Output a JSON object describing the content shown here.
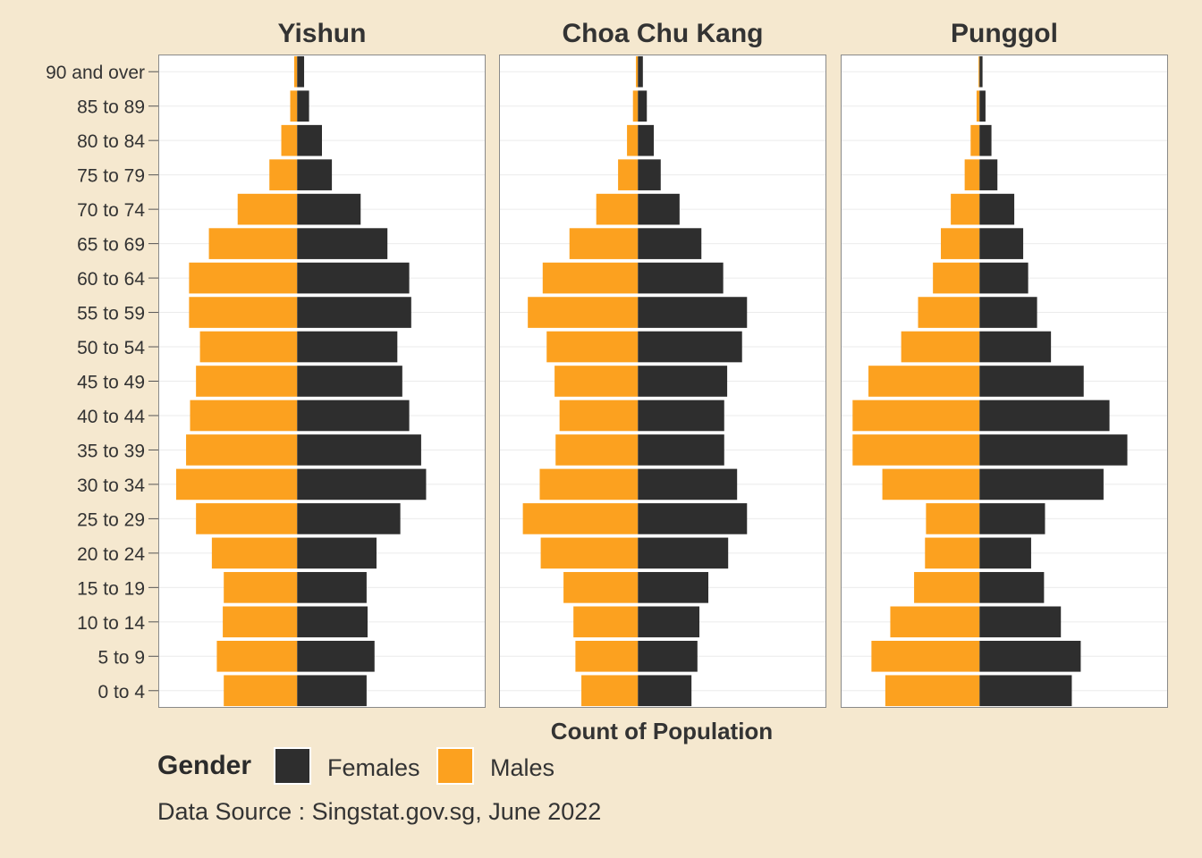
{
  "chart_data": {
    "type": "bar",
    "orientation": "horizontal-diverging",
    "xlabel": "Count of Population",
    "age_groups": [
      "0 to 4",
      "5 to 9",
      "10 to 14",
      "15 to 19",
      "20 to 24",
      "25 to 29",
      "30 to 34",
      "35 to 39",
      "40 to 44",
      "45 to 49",
      "50 to 54",
      "55 to 59",
      "60 to 64",
      "65 to 69",
      "70 to 74",
      "75 to 79",
      "80 to 84",
      "85 to 89",
      "90 and over"
    ],
    "legend": {
      "title": "Gender",
      "placement": "bottom",
      "entries": [
        {
          "name": "Females",
          "color": "#2e2e2e"
        },
        {
          "name": "Males",
          "color": "#fca11f"
        }
      ]
    },
    "panels": [
      {
        "title": "Yishun",
        "series": [
          {
            "name": "Females",
            "values": [
              3500,
              3900,
              3550,
              3500,
              4000,
              5200,
              6500,
              6250,
              5650,
              5300,
              5050,
              5750,
              5650,
              4550,
              3200,
              1750,
              1250,
              600,
              350
            ]
          },
          {
            "name": "Males",
            "values": [
              3700,
              4050,
              3750,
              3700,
              4300,
              5100,
              6100,
              5600,
              5400,
              5100,
              4900,
              5450,
              5450,
              4450,
              3000,
              1400,
              800,
              350,
              150
            ]
          }
        ]
      },
      {
        "title": "Choa Chu Kang",
        "series": [
          {
            "name": "Females",
            "values": [
              2700,
              3000,
              3100,
              3550,
              4550,
              5500,
              5000,
              4350,
              4350,
              4500,
              5250,
              5500,
              4300,
              3200,
              2100,
              1150,
              800,
              450,
              250
            ]
          },
          {
            "name": "Males",
            "values": [
              2850,
              3150,
              3250,
              3750,
              4900,
              5800,
              4950,
              4150,
              3950,
              4200,
              4600,
              5550,
              4800,
              3450,
              2100,
              1000,
              550,
              250,
              100
            ]
          }
        ]
      },
      {
        "title": "Punggol",
        "series": [
          {
            "name": "Females",
            "values": [
              4650,
              5100,
              4100,
              3250,
              2600,
              3300,
              6250,
              7450,
              6550,
              5250,
              3600,
              2900,
              2450,
              2200,
              1750,
              900,
              600,
              300,
              150
            ]
          },
          {
            "name": "Males",
            "values": [
              4750,
              5450,
              4500,
              3300,
              2750,
              2700,
              4900,
              6400,
              6400,
              5600,
              3950,
              3100,
              2350,
              1950,
              1450,
              750,
              450,
              150,
              50
            ]
          }
        ]
      }
    ],
    "xlim": [
      -7000,
      9500
    ],
    "grid": true
  },
  "legend_title": "Gender",
  "legend_labels": {
    "females": "Females",
    "males": "Males"
  },
  "source_note": "Data Source : Singstat.gov.sg, June 2022"
}
